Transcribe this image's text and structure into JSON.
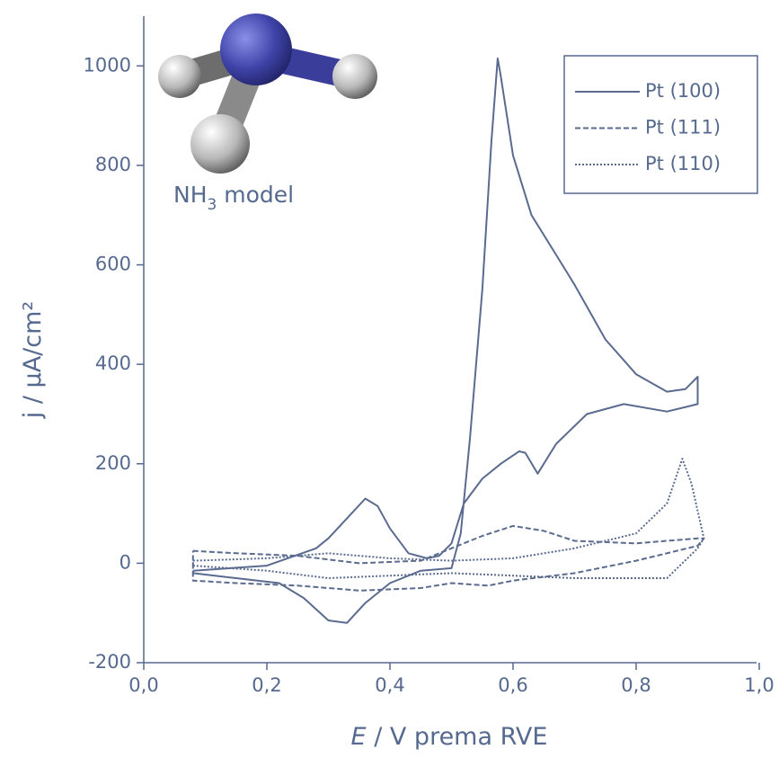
{
  "chart_data": {
    "type": "line",
    "xlabel_symbol": "E",
    "xlabel_rest": " / V prema RVE",
    "ylabel": "j / µA/cm²",
    "annotation": {
      "base": "NH",
      "subscript": "3",
      "rest": " model"
    },
    "xlim": [
      0,
      1
    ],
    "xticks": [
      {
        "value": 0,
        "label": "0,0"
      },
      {
        "value": 0.2,
        "label": "0,2"
      },
      {
        "value": 0.4,
        "label": "0,4"
      },
      {
        "value": 0.6,
        "label": "0,6"
      },
      {
        "value": 0.8,
        "label": "0,8"
      },
      {
        "value": 1,
        "label": "1,0"
      }
    ],
    "ylim": [
      -200,
      1100
    ],
    "yticks": [
      -200,
      0,
      200,
      400,
      600,
      800,
      1000
    ],
    "legend": "upper right",
    "series": [
      {
        "name": "Pt (100)",
        "color": "#5a6b8f",
        "dash": "solid",
        "x": [
          0.08,
          0.2,
          0.28,
          0.3,
          0.33,
          0.36,
          0.38,
          0.4,
          0.43,
          0.46,
          0.48,
          0.5,
          0.52,
          0.55,
          0.58,
          0.61,
          0.62,
          0.64,
          0.67,
          0.72,
          0.78,
          0.85,
          0.9,
          0.9,
          0.88,
          0.85,
          0.8,
          0.75,
          0.7,
          0.67,
          0.63,
          0.6,
          0.58,
          0.575,
          0.565,
          0.55,
          0.53,
          0.515,
          0.5,
          0.45,
          0.4,
          0.36,
          0.33,
          0.3,
          0.26,
          0.22,
          0.15,
          0.08,
          0.08
        ],
        "values": [
          -15,
          -5,
          30,
          50,
          90,
          130,
          115,
          70,
          20,
          10,
          15,
          40,
          120,
          170,
          200,
          225,
          222,
          180,
          240,
          300,
          320,
          305,
          320,
          375,
          350,
          345,
          380,
          450,
          560,
          620,
          700,
          820,
          980,
          1015,
          850,
          550,
          250,
          60,
          -10,
          -15,
          -40,
          -80,
          -120,
          -115,
          -70,
          -40,
          -30,
          -20,
          -15
        ]
      },
      {
        "name": "Pt (111)",
        "color": "#5a6b8f",
        "dash": "dashed",
        "x": [
          0.08,
          0.15,
          0.25,
          0.35,
          0.45,
          0.5,
          0.55,
          0.6,
          0.65,
          0.7,
          0.8,
          0.9,
          0.91,
          0.9,
          0.8,
          0.7,
          0.6,
          0.56,
          0.5,
          0.45,
          0.35,
          0.3,
          0.25,
          0.15,
          0.08,
          0.08
        ],
        "values": [
          25,
          20,
          15,
          0,
          5,
          30,
          55,
          75,
          65,
          45,
          40,
          50,
          50,
          35,
          5,
          -20,
          -35,
          -45,
          -40,
          -50,
          -55,
          -50,
          -45,
          -40,
          -35,
          25
        ]
      },
      {
        "name": "Pt (110)",
        "color": "#5a6b8f",
        "dash": "dotted",
        "x": [
          0.08,
          0.2,
          0.3,
          0.4,
          0.5,
          0.6,
          0.7,
          0.8,
          0.85,
          0.875,
          0.89,
          0.91,
          0.9,
          0.85,
          0.7,
          0.6,
          0.5,
          0.4,
          0.3,
          0.2,
          0.08,
          0.08
        ],
        "values": [
          5,
          10,
          20,
          10,
          5,
          10,
          30,
          60,
          120,
          210,
          160,
          50,
          30,
          -30,
          -30,
          -25,
          -20,
          -25,
          -30,
          -15,
          -5,
          5
        ]
      }
    ]
  }
}
